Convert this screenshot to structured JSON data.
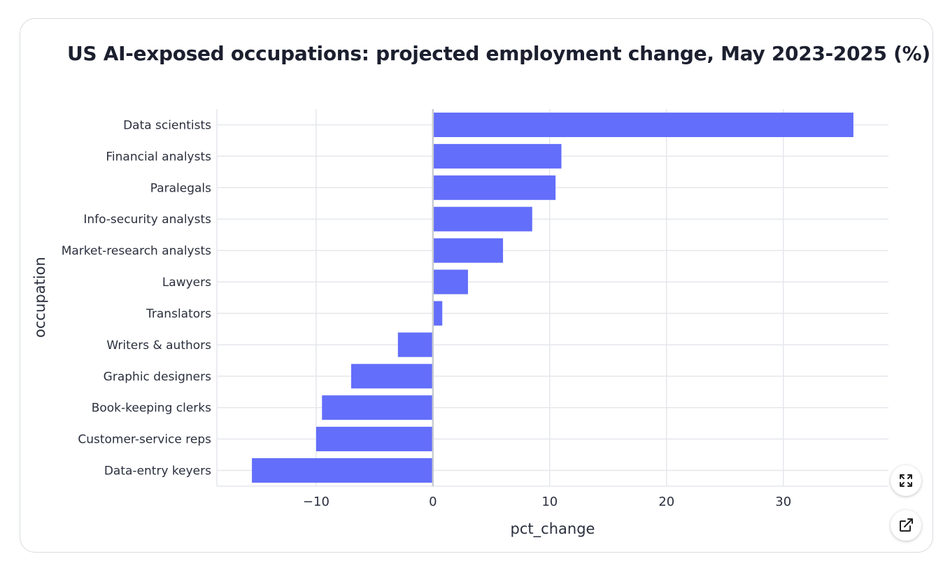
{
  "chart_data": {
    "type": "bar",
    "orientation": "horizontal",
    "title": "US AI-exposed occupations: projected employment change, May 2023-2025 (%)",
    "xlabel": "pct_change",
    "ylabel": "occupation",
    "categories": [
      "Data scientists",
      "Financial analysts",
      "Paralegals",
      "Info-security analysts",
      "Market-research analysts",
      "Lawyers",
      "Translators",
      "Writers & authors",
      "Graphic designers",
      "Book-keeping clerks",
      "Customer-service reps",
      "Data-entry keyers"
    ],
    "values": [
      36,
      11,
      10.5,
      8.5,
      6,
      3,
      0.8,
      -3,
      -7,
      -9.5,
      -10,
      -15.5
    ],
    "xlim": [
      -18.5,
      39
    ],
    "xticks": [
      -10,
      0,
      10,
      20,
      30
    ],
    "xtick_labels": [
      "−10",
      "0",
      "10",
      "20",
      "30"
    ],
    "grid": true,
    "bar_color": "#636efa"
  },
  "controls": {
    "expand_icon": "expand-icon",
    "open_icon": "external-link-icon"
  }
}
